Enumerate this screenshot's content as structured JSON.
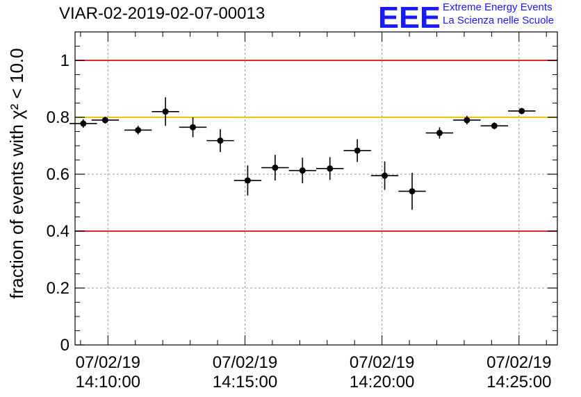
{
  "header": {
    "title": "VIAR-02-2019-02-07-00013",
    "logo_mark": "EEE",
    "logo_line1": "Extreme Energy Events",
    "logo_line2": "La Scienza nelle Scuole"
  },
  "chart_data": {
    "type": "scatter",
    "title": "VIAR-02-2019-02-07-00013",
    "ylabel": "fraction of events with χ² < 10.0",
    "xlabel": "",
    "ylim": [
      0,
      1.1
    ],
    "xlim": [
      -1.2,
      16.4
    ],
    "x_ticks": [
      {
        "x": 0,
        "label": [
          "07/02/19",
          "14:10:00"
        ]
      },
      {
        "x": 5,
        "label": [
          "07/02/19",
          "14:15:00"
        ]
      },
      {
        "x": 10,
        "label": [
          "07/02/19",
          "14:20:00"
        ]
      },
      {
        "x": 15,
        "label": [
          "07/02/19",
          "14:25:00"
        ]
      }
    ],
    "y_ticks": [
      0,
      0.2,
      0.4,
      0.6,
      0.8,
      1
    ],
    "y_tick_labels": [
      "0",
      "0.2",
      "0.4",
      "0.6",
      "0.8",
      "1"
    ],
    "grid": true,
    "reference_lines": [
      {
        "y": 1.0,
        "color": "#e8262a"
      },
      {
        "y": 0.8,
        "color": "#f5c400"
      },
      {
        "y": 0.4,
        "color": "#e8262a"
      }
    ],
    "series": [
      {
        "points": [
          {
            "x": -0.9,
            "y": 0.778,
            "xerr": 0.5,
            "yerr": 0.015
          },
          {
            "x": -0.1,
            "y": 0.79,
            "xerr": 0.5,
            "yerr": 0.012
          },
          {
            "x": 1.1,
            "y": 0.755,
            "xerr": 0.5,
            "yerr": 0.015
          },
          {
            "x": 2.1,
            "y": 0.82,
            "xerr": 0.5,
            "yerr": 0.05
          },
          {
            "x": 3.1,
            "y": 0.765,
            "xerr": 0.5,
            "yerr": 0.035
          },
          {
            "x": 4.1,
            "y": 0.718,
            "xerr": 0.5,
            "yerr": 0.04
          },
          {
            "x": 5.1,
            "y": 0.578,
            "xerr": 0.5,
            "yerr": 0.053
          },
          {
            "x": 6.1,
            "y": 0.623,
            "xerr": 0.5,
            "yerr": 0.045
          },
          {
            "x": 7.1,
            "y": 0.613,
            "xerr": 0.5,
            "yerr": 0.045
          },
          {
            "x": 8.1,
            "y": 0.62,
            "xerr": 0.5,
            "yerr": 0.04
          },
          {
            "x": 9.1,
            "y": 0.683,
            "xerr": 0.5,
            "yerr": 0.04
          },
          {
            "x": 10.1,
            "y": 0.595,
            "xerr": 0.5,
            "yerr": 0.05
          },
          {
            "x": 11.1,
            "y": 0.54,
            "xerr": 0.5,
            "yerr": 0.065
          },
          {
            "x": 12.1,
            "y": 0.745,
            "xerr": 0.5,
            "yerr": 0.02
          },
          {
            "x": 13.1,
            "y": 0.79,
            "xerr": 0.5,
            "yerr": 0.015
          },
          {
            "x": 14.1,
            "y": 0.77,
            "xerr": 0.5,
            "yerr": 0.012
          },
          {
            "x": 15.1,
            "y": 0.822,
            "xerr": 0.5,
            "yerr": 0.01
          }
        ]
      }
    ]
  }
}
